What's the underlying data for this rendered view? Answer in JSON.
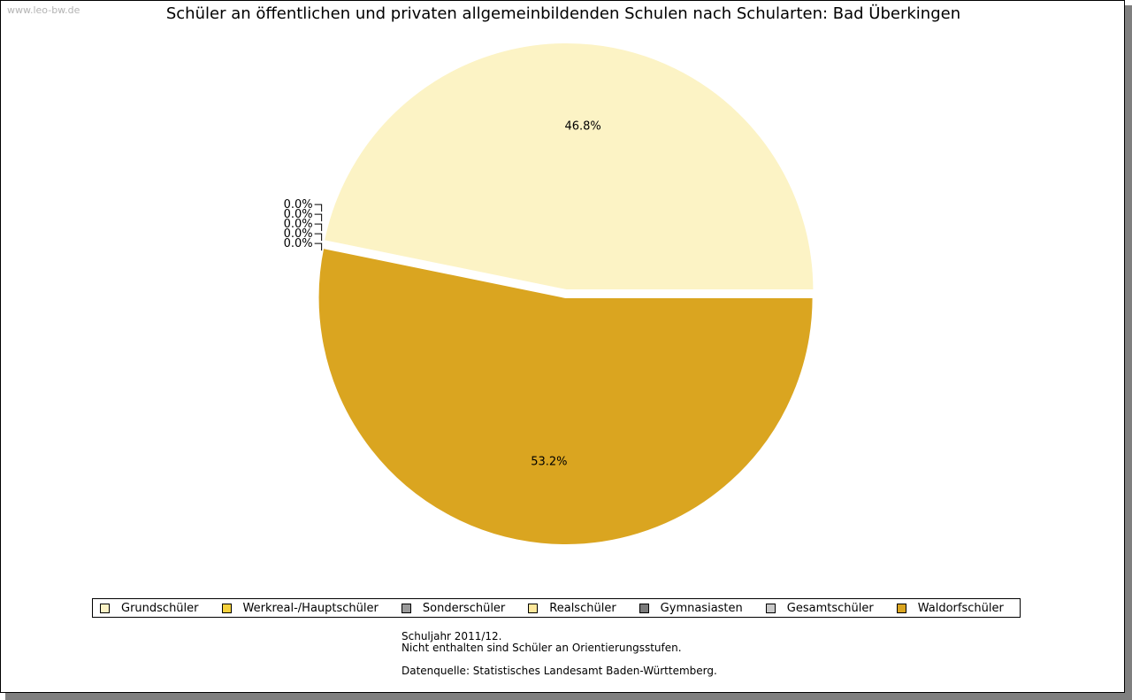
{
  "watermark": "www.leo-bw.de",
  "chart_data": {
    "type": "pie",
    "title": "Schüler an öffentlichen und privaten allgemeinbildenden Schulen nach Schularten: Bad Überkingen",
    "slices": [
      {
        "name": "Grundschüler",
        "percent": 46.8,
        "label": "46.8%",
        "color": "#fcf3c5"
      },
      {
        "name": "Werkreal-/Hauptschüler",
        "percent": 0.0,
        "label": "0.0%",
        "color": "#f5d13c"
      },
      {
        "name": "Sonderschüler",
        "percent": 0.0,
        "label": "0.0%",
        "color": "#9a9a9a"
      },
      {
        "name": "Realschüler",
        "percent": 0.0,
        "label": "0.0%",
        "color": "#fde79b"
      },
      {
        "name": "Gymnasiasten",
        "percent": 0.0,
        "label": "0.0%",
        "color": "#7a7a7a"
      },
      {
        "name": "Gesamtschüler",
        "percent": 0.0,
        "label": "0.0%",
        "color": "#c8c8c8"
      },
      {
        "name": "Waldorfschüler",
        "percent": 53.2,
        "label": "53.2%",
        "color": "#daa520"
      }
    ],
    "start_angle_deg": 0,
    "direction": "counterclockwise",
    "legend_position": "bottom"
  },
  "notes": {
    "line1": "Schuljahr 2011/12.",
    "line2": "Nicht enthalten sind Schüler an Orientierungsstufen.",
    "source": "Datenquelle: Statistisches Landesamt Baden-Württemberg."
  }
}
